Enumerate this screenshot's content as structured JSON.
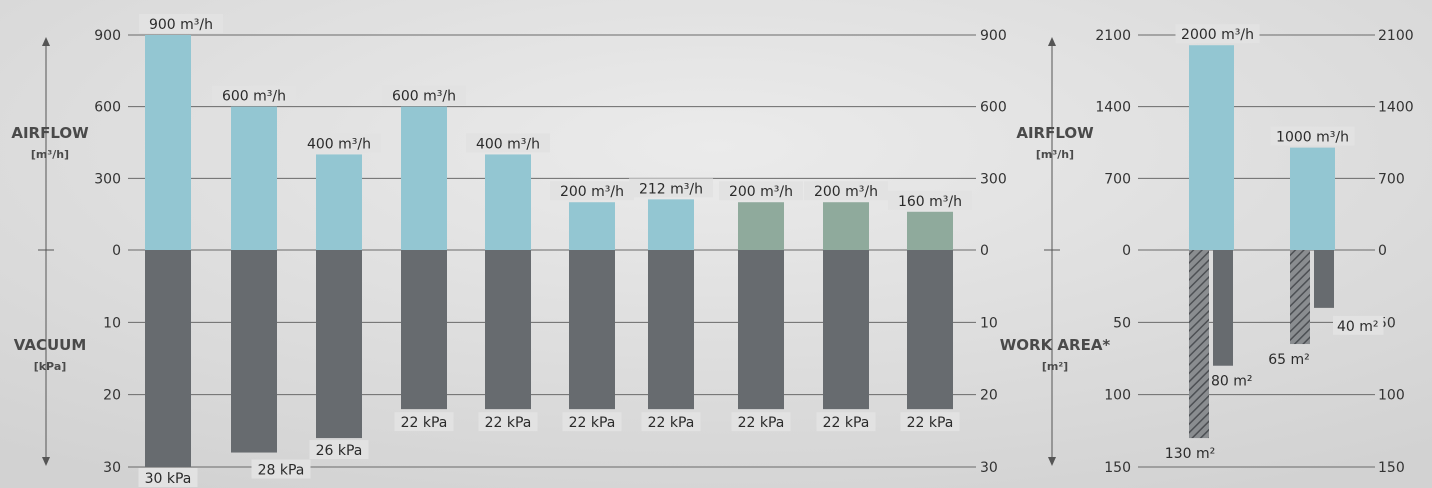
{
  "colors": {
    "airflow": "#93c6d2",
    "airflow_alt": "#8faa9c",
    "vacuum": "#676b6f",
    "hatch_fg": "#4d5054",
    "gridline": "#6a6a6a",
    "background": "#e4e4e4"
  },
  "chart_data": [
    {
      "type": "bar",
      "top_axis": {
        "title": "AIRFLOW",
        "unit": "[m³/h]",
        "ticks": [
          0,
          300,
          600,
          900
        ],
        "range": [
          0,
          900
        ]
      },
      "bottom_axis": {
        "title": "VACUUM",
        "unit": "[kPa]",
        "ticks": [
          10,
          20,
          30
        ],
        "range": [
          0,
          30
        ]
      },
      "grid": true,
      "series": [
        {
          "values": [
            900,
            600,
            400,
            600,
            400,
            200,
            212,
            200,
            200,
            160
          ],
          "labels": [
            "900 m³/h",
            "600 m³/h",
            "400 m³/h",
            "600 m³/h",
            "400 m³/h",
            "200 m³/h",
            "212 m³/h",
            "200 m³/h",
            "200 m³/h",
            "160 m³/h"
          ],
          "color_variant": [
            "airflow",
            "airflow",
            "airflow",
            "airflow",
            "airflow",
            "airflow",
            "airflow",
            "airflow_alt",
            "airflow_alt",
            "airflow_alt"
          ]
        },
        {
          "values": [
            30,
            28,
            26,
            22,
            22,
            22,
            22,
            22,
            22,
            22
          ],
          "labels": [
            "30 kPa",
            "28 kPa",
            "26 kPa",
            "22 kPa",
            "22 kPa",
            "22 kPa",
            "22 kPa",
            "22 kPa",
            "22 kPa",
            "22 kPa"
          ]
        }
      ]
    },
    {
      "type": "bar",
      "top_axis": {
        "title": "AIRFLOW",
        "unit": "[m³/h]",
        "ticks": [
          0,
          700,
          1400,
          2100
        ],
        "range": [
          0,
          2100
        ]
      },
      "bottom_axis": {
        "title": "WORK AREA*",
        "unit": "[m²]",
        "ticks": [
          50,
          100,
          150
        ],
        "range": [
          0,
          150
        ]
      },
      "grid": true,
      "series": [
        {
          "values": [
            2000,
            1000
          ],
          "labels": [
            "2000 m³/h",
            "1000 m³/h"
          ]
        },
        {
          "values": [
            130,
            80,
            65,
            40
          ],
          "labels": [
            "130 m²",
            "80 m²",
            "65 m²",
            "40 m²"
          ],
          "hatched": [
            true,
            false,
            true,
            false
          ]
        }
      ]
    }
  ]
}
